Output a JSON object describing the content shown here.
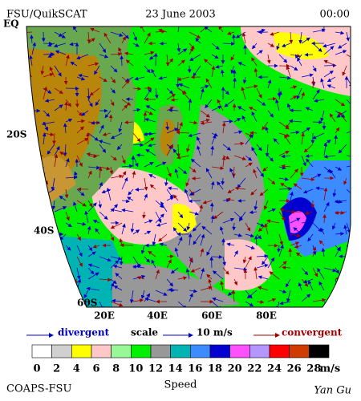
{
  "header": {
    "left": "FSU/QuikSCAT",
    "center": "23 June 2003",
    "right": "00:00"
  },
  "lat_labels": [
    "EQ",
    "20S",
    "40S",
    "60S"
  ],
  "lon_labels": [
    "20E",
    "40E",
    "60E",
    "80E"
  ],
  "legend": {
    "divergent": "divergent",
    "scale": "scale",
    "scale_value": "10 m/s",
    "convergent": "convergent"
  },
  "colorbar": {
    "colors": [
      "#ffffff",
      "#d0d0d0",
      "#ffff00",
      "#ffc8c8",
      "#98f898",
      "#00f000",
      "#989898",
      "#00b4b4",
      "#3c8cff",
      "#0000d0",
      "#ff50ff",
      "#b496ff",
      "#ff0000",
      "#d03c00",
      "#000000"
    ],
    "labels": [
      0,
      2,
      4,
      6,
      8,
      10,
      12,
      14,
      16,
      18,
      20,
      22,
      24,
      26,
      28
    ],
    "unit": "m/s"
  },
  "footer": {
    "left": "COAPS-FSU",
    "center": "Speed",
    "right": "Yan Gu"
  }
}
